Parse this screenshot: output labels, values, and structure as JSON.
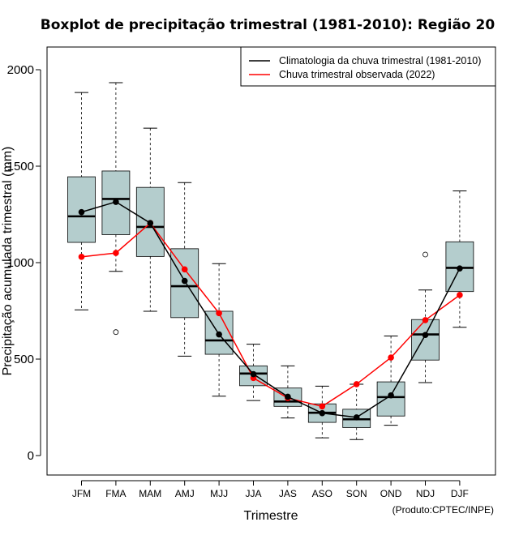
{
  "chart_data": {
    "type": "box",
    "title": "Boxplot de precipitação trimestral (1981-2010): Região 20",
    "xlabel": "Trimestre",
    "ylabel": "Precipitação acumulada trimestral (mm)",
    "ylim": [
      -100,
      2100
    ],
    "yticks": [
      0,
      500,
      1000,
      1500,
      2000
    ],
    "categories": [
      "JFM",
      "FMA",
      "MAM",
      "AMJ",
      "MJJ",
      "JJA",
      "JAS",
      "ASO",
      "SON",
      "OND",
      "NDJ",
      "DJF"
    ],
    "boxes": [
      {
        "whisker_low": 755,
        "q1": 1105,
        "median": 1240,
        "q3": 1445,
        "whisker_high": 1882,
        "outliers": []
      },
      {
        "whisker_low": 955,
        "q1": 1145,
        "median": 1330,
        "q3": 1475,
        "whisker_high": 1933,
        "outliers": [
          640
        ]
      },
      {
        "whisker_low": 748,
        "q1": 1032,
        "median": 1185,
        "q3": 1390,
        "whisker_high": 1697,
        "outliers": []
      },
      {
        "whisker_low": 515,
        "q1": 715,
        "median": 878,
        "q3": 1072,
        "whisker_high": 1415,
        "outliers": []
      },
      {
        "whisker_low": 308,
        "q1": 525,
        "median": 597,
        "q3": 748,
        "whisker_high": 995,
        "outliers": []
      },
      {
        "whisker_low": 285,
        "q1": 362,
        "median": 425,
        "q3": 465,
        "whisker_high": 577,
        "outliers": []
      },
      {
        "whisker_low": 195,
        "q1": 255,
        "median": 280,
        "q3": 350,
        "whisker_high": 465,
        "outliers": []
      },
      {
        "whisker_low": 92,
        "q1": 172,
        "median": 222,
        "q3": 268,
        "whisker_high": 360,
        "outliers": []
      },
      {
        "whisker_low": 83,
        "q1": 145,
        "median": 188,
        "q3": 240,
        "whisker_high": 370,
        "outliers": []
      },
      {
        "whisker_low": 157,
        "q1": 205,
        "median": 303,
        "q3": 382,
        "whisker_high": 620,
        "outliers": []
      },
      {
        "whisker_low": 378,
        "q1": 495,
        "median": 628,
        "q3": 705,
        "whisker_high": 858,
        "outliers": [
          1042
        ]
      },
      {
        "whisker_low": 665,
        "q1": 850,
        "median": 973,
        "q3": 1108,
        "whisker_high": 1372,
        "outliers": []
      }
    ],
    "series": [
      {
        "name": "Climatologia da chuva trimestral (1981-2010)",
        "color": "#000000",
        "values": [
          1262,
          1315,
          1205,
          905,
          628,
          422,
          305,
          220,
          198,
          312,
          625,
          970
        ]
      },
      {
        "name": "Chuva trimestral observada (2022)",
        "color": "#ff0000",
        "values": [
          1030,
          1050,
          1205,
          965,
          738,
          402,
          298,
          255,
          370,
          508,
          702,
          832
        ]
      }
    ],
    "legend_position": "top-right",
    "box_fill": "#b4cdcd",
    "credit": "(Produto:CPTEC/INPE)"
  }
}
